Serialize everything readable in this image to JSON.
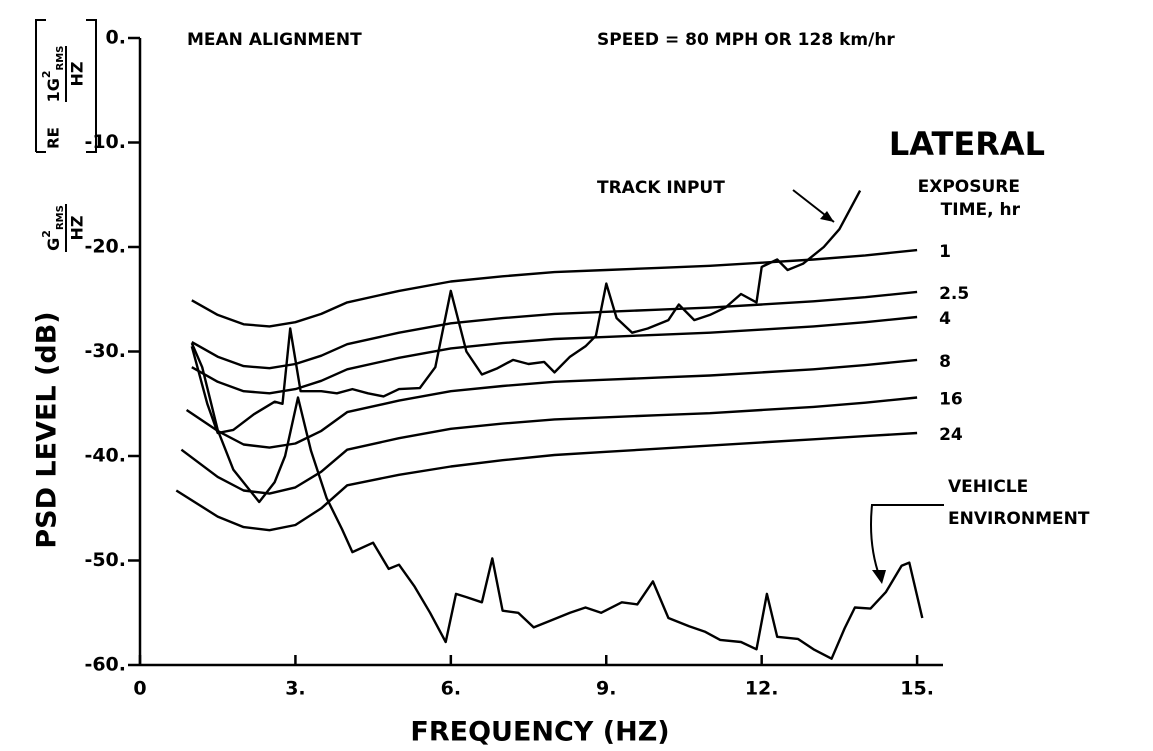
{
  "chart_data": {
    "type": "line",
    "title": "MEAN ALIGNMENT",
    "subtitle": "SPEED = 80 MPH OR 128 km/hr",
    "panel_label": "LATERAL",
    "legend_title": [
      "EXPOSURE",
      "TIME, hr"
    ],
    "x_label": "FREQUENCY (HZ)",
    "y_label": "PSD LEVEL (dB)",
    "y_unit": {
      "base": "G",
      "sup": "2",
      "sub": "RMS",
      "den": "HZ"
    },
    "y_ref": {
      "prefix": "RE",
      "base": "1G",
      "sup": "2",
      "sub": "RMS",
      "den": "HZ"
    },
    "xlim": [
      0,
      15.5
    ],
    "ylim": [
      -60,
      0
    ],
    "xticks": [
      0,
      {
        "value": 3,
        "label": "3."
      },
      {
        "value": 6,
        "label": "6."
      },
      {
        "value": 9,
        "label": "9."
      },
      {
        "value": 12,
        "label": "12."
      },
      {
        "value": 15,
        "label": "15."
      }
    ],
    "yticks": [
      {
        "value": 0,
        "label": "0."
      },
      {
        "value": -10,
        "label": "-10."
      },
      {
        "value": -20,
        "label": "-20."
      },
      {
        "value": -30,
        "label": "-30."
      },
      {
        "value": -40,
        "label": "-40."
      },
      {
        "value": -50,
        "label": "-50."
      },
      {
        "value": -60,
        "label": "-60."
      }
    ],
    "series": [
      {
        "name": "TRACK INPUT",
        "color": "#000000",
        "x": [
          1.0,
          1.3,
          1.5,
          1.8,
          2.2,
          2.6,
          2.75,
          2.9,
          3.1,
          3.5,
          3.8,
          4.1,
          4.4,
          4.7,
          5.0,
          5.4,
          5.7,
          6.0,
          6.3,
          6.6,
          6.9,
          7.2,
          7.5,
          7.8,
          8.0,
          8.3,
          8.6,
          8.8,
          9.0,
          9.2,
          9.5,
          9.8,
          10.2,
          10.4,
          10.7,
          11.0,
          11.3,
          11.6,
          11.9,
          12.0,
          12.3,
          12.5,
          12.8,
          13.2,
          13.5,
          13.9
        ],
        "values": [
          -29.5,
          -35,
          -37.8,
          -37.5,
          -36,
          -34.8,
          -35,
          -27.8,
          -33.8,
          -33.8,
          -34,
          -33.6,
          -34,
          -34.3,
          -33.6,
          -33.5,
          -31.5,
          -24.2,
          -30,
          -32.2,
          -31.6,
          -30.8,
          -31.2,
          -31,
          -32,
          -30.5,
          -29.5,
          -28.5,
          -23.5,
          -26.8,
          -28.2,
          -27.8,
          -27,
          -25.5,
          -27,
          -26.5,
          -25.8,
          -24.5,
          -25.3,
          -21.9,
          -21.2,
          -22.2,
          -21.6,
          -20,
          -18.3,
          -14.6
        ]
      },
      {
        "name": "VEHICLE ENVIRONMENT",
        "color": "#000000",
        "x": [
          1.0,
          1.2,
          1.5,
          1.8,
          2.3,
          2.6,
          2.8,
          3.05,
          3.3,
          3.6,
          3.9,
          4.1,
          4.5,
          4.8,
          5.0,
          5.3,
          5.6,
          5.9,
          6.1,
          6.3,
          6.6,
          6.8,
          7.0,
          7.3,
          7.6,
          7.9,
          8.3,
          8.6,
          8.9,
          9.3,
          9.6,
          9.9,
          10.2,
          10.6,
          10.9,
          11.2,
          11.6,
          11.9,
          12.1,
          12.3,
          12.7,
          13.0,
          13.35,
          13.6,
          13.8,
          14.1,
          14.4,
          14.7,
          14.85,
          15.1
        ],
        "values": [
          -29.2,
          -31.5,
          -37.5,
          -41.3,
          -44.4,
          -42.5,
          -40,
          -34.4,
          -39.5,
          -44,
          -47,
          -49.2,
          -48.3,
          -50.8,
          -50.4,
          -52.5,
          -55,
          -57.8,
          -53.2,
          -53.5,
          -54,
          -49.8,
          -54.8,
          -55,
          -56.4,
          -55.8,
          -55,
          -54.5,
          -55,
          -54,
          -54.2,
          -52,
          -55.5,
          -56.3,
          -56.8,
          -57.6,
          -57.8,
          -58.5,
          -53.2,
          -57.3,
          -57.5,
          -58.5,
          -59.4,
          -56.5,
          -54.5,
          -54.6,
          -53,
          -50.5,
          -50.2,
          -55.5
        ]
      },
      {
        "name": "1",
        "color": "#000000",
        "x": [
          1,
          1.5,
          2,
          2.5,
          3,
          3.5,
          4,
          5,
          6,
          7,
          8,
          9,
          10,
          11,
          12,
          13,
          14,
          15
        ],
        "values": [
          -25.1,
          -26.5,
          -27.4,
          -27.6,
          -27.2,
          -26.4,
          -25.3,
          -24.2,
          -23.3,
          -22.8,
          -22.4,
          -22.2,
          -22.0,
          -21.8,
          -21.5,
          -21.2,
          -20.8,
          -20.3
        ]
      },
      {
        "name": "2.5",
        "color": "#000000",
        "x": [
          1,
          1.5,
          2,
          2.5,
          3,
          3.5,
          4,
          5,
          6,
          7,
          8,
          9,
          10,
          11,
          12,
          13,
          14,
          15
        ],
        "values": [
          -29.1,
          -30.5,
          -31.4,
          -31.6,
          -31.2,
          -30.4,
          -29.3,
          -28.2,
          -27.3,
          -26.8,
          -26.4,
          -26.2,
          -26.0,
          -25.8,
          -25.5,
          -25.2,
          -24.8,
          -24.3
        ]
      },
      {
        "name": "4",
        "color": "#000000",
        "x": [
          1,
          1.5,
          2,
          2.5,
          3,
          3.5,
          4,
          5,
          6,
          7,
          8,
          9,
          10,
          11,
          12,
          13,
          14,
          15
        ],
        "values": [
          -31.5,
          -32.9,
          -33.8,
          -34.0,
          -33.6,
          -32.8,
          -31.7,
          -30.6,
          -29.7,
          -29.2,
          -28.8,
          -28.6,
          -28.4,
          -28.2,
          -27.9,
          -27.6,
          -27.2,
          -26.7
        ]
      },
      {
        "name": "8",
        "color": "#000000",
        "x": [
          0.9,
          1.5,
          2,
          2.5,
          3,
          3.5,
          4,
          5,
          6,
          7,
          8,
          9,
          10,
          11,
          12,
          13,
          14,
          15
        ],
        "values": [
          -35.6,
          -37.6,
          -38.9,
          -39.2,
          -38.8,
          -37.6,
          -35.8,
          -34.7,
          -33.8,
          -33.3,
          -32.9,
          -32.7,
          -32.5,
          -32.3,
          -32.0,
          -31.7,
          -31.3,
          -30.8
        ]
      },
      {
        "name": "16",
        "color": "#000000",
        "x": [
          0.8,
          1.5,
          2,
          2.5,
          3,
          3.5,
          4,
          5,
          6,
          7,
          8,
          9,
          10,
          11,
          12,
          13,
          14,
          15
        ],
        "values": [
          -39.4,
          -42.0,
          -43.3,
          -43.6,
          -43.0,
          -41.5,
          -39.4,
          -38.3,
          -37.4,
          -36.9,
          -36.5,
          -36.3,
          -36.1,
          -35.9,
          -35.6,
          -35.3,
          -34.9,
          -34.4
        ]
      },
      {
        "name": "24",
        "color": "#000000",
        "x": [
          0.7,
          1.5,
          2,
          2.5,
          3,
          3.5,
          4,
          5,
          6,
          7,
          8,
          9,
          10,
          11,
          12,
          13,
          14,
          15
        ],
        "values": [
          -43.3,
          -45.8,
          -46.8,
          -47.1,
          -46.6,
          -45.0,
          -42.8,
          -41.8,
          -41.0,
          -40.4,
          -39.9,
          -39.6,
          -39.3,
          -39.0,
          -38.7,
          -38.4,
          -38.1,
          -37.8
        ]
      }
    ]
  }
}
